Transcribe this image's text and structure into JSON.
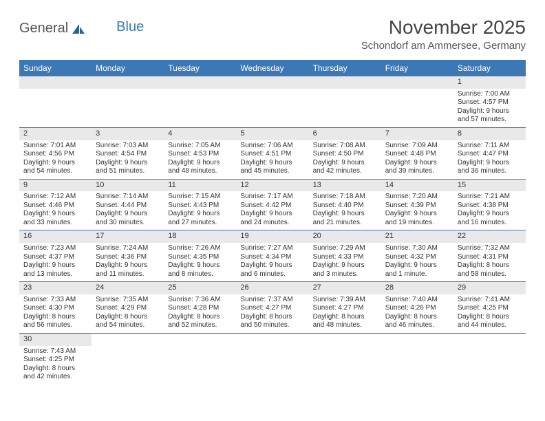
{
  "logo": {
    "text1": "General",
    "text2": "Blue"
  },
  "title": "November 2025",
  "location": "Schondorf am Ammersee, Germany",
  "colors": {
    "header_bg": "#3b78b5",
    "header_text": "#ffffff",
    "daynum_bg": "#e9e9e9",
    "row_border": "#3b78b5",
    "body_text": "#333333",
    "page_bg": "#ffffff"
  },
  "weekdays": [
    "Sunday",
    "Monday",
    "Tuesday",
    "Wednesday",
    "Thursday",
    "Friday",
    "Saturday"
  ],
  "weeks": [
    [
      {
        "blank": true
      },
      {
        "blank": true
      },
      {
        "blank": true
      },
      {
        "blank": true
      },
      {
        "blank": true
      },
      {
        "blank": true
      },
      {
        "day": "1",
        "sunrise": "Sunrise: 7:00 AM",
        "sunset": "Sunset: 4:57 PM",
        "daylight": "Daylight: 9 hours and 57 minutes."
      }
    ],
    [
      {
        "day": "2",
        "sunrise": "Sunrise: 7:01 AM",
        "sunset": "Sunset: 4:56 PM",
        "daylight": "Daylight: 9 hours and 54 minutes."
      },
      {
        "day": "3",
        "sunrise": "Sunrise: 7:03 AM",
        "sunset": "Sunset: 4:54 PM",
        "daylight": "Daylight: 9 hours and 51 minutes."
      },
      {
        "day": "4",
        "sunrise": "Sunrise: 7:05 AM",
        "sunset": "Sunset: 4:53 PM",
        "daylight": "Daylight: 9 hours and 48 minutes."
      },
      {
        "day": "5",
        "sunrise": "Sunrise: 7:06 AM",
        "sunset": "Sunset: 4:51 PM",
        "daylight": "Daylight: 9 hours and 45 minutes."
      },
      {
        "day": "6",
        "sunrise": "Sunrise: 7:08 AM",
        "sunset": "Sunset: 4:50 PM",
        "daylight": "Daylight: 9 hours and 42 minutes."
      },
      {
        "day": "7",
        "sunrise": "Sunrise: 7:09 AM",
        "sunset": "Sunset: 4:48 PM",
        "daylight": "Daylight: 9 hours and 39 minutes."
      },
      {
        "day": "8",
        "sunrise": "Sunrise: 7:11 AM",
        "sunset": "Sunset: 4:47 PM",
        "daylight": "Daylight: 9 hours and 36 minutes."
      }
    ],
    [
      {
        "day": "9",
        "sunrise": "Sunrise: 7:12 AM",
        "sunset": "Sunset: 4:46 PM",
        "daylight": "Daylight: 9 hours and 33 minutes."
      },
      {
        "day": "10",
        "sunrise": "Sunrise: 7:14 AM",
        "sunset": "Sunset: 4:44 PM",
        "daylight": "Daylight: 9 hours and 30 minutes."
      },
      {
        "day": "11",
        "sunrise": "Sunrise: 7:15 AM",
        "sunset": "Sunset: 4:43 PM",
        "daylight": "Daylight: 9 hours and 27 minutes."
      },
      {
        "day": "12",
        "sunrise": "Sunrise: 7:17 AM",
        "sunset": "Sunset: 4:42 PM",
        "daylight": "Daylight: 9 hours and 24 minutes."
      },
      {
        "day": "13",
        "sunrise": "Sunrise: 7:18 AM",
        "sunset": "Sunset: 4:40 PM",
        "daylight": "Daylight: 9 hours and 21 minutes."
      },
      {
        "day": "14",
        "sunrise": "Sunrise: 7:20 AM",
        "sunset": "Sunset: 4:39 PM",
        "daylight": "Daylight: 9 hours and 19 minutes."
      },
      {
        "day": "15",
        "sunrise": "Sunrise: 7:21 AM",
        "sunset": "Sunset: 4:38 PM",
        "daylight": "Daylight: 9 hours and 16 minutes."
      }
    ],
    [
      {
        "day": "16",
        "sunrise": "Sunrise: 7:23 AM",
        "sunset": "Sunset: 4:37 PM",
        "daylight": "Daylight: 9 hours and 13 minutes."
      },
      {
        "day": "17",
        "sunrise": "Sunrise: 7:24 AM",
        "sunset": "Sunset: 4:36 PM",
        "daylight": "Daylight: 9 hours and 11 minutes."
      },
      {
        "day": "18",
        "sunrise": "Sunrise: 7:26 AM",
        "sunset": "Sunset: 4:35 PM",
        "daylight": "Daylight: 9 hours and 8 minutes."
      },
      {
        "day": "19",
        "sunrise": "Sunrise: 7:27 AM",
        "sunset": "Sunset: 4:34 PM",
        "daylight": "Daylight: 9 hours and 6 minutes."
      },
      {
        "day": "20",
        "sunrise": "Sunrise: 7:29 AM",
        "sunset": "Sunset: 4:33 PM",
        "daylight": "Daylight: 9 hours and 3 minutes."
      },
      {
        "day": "21",
        "sunrise": "Sunrise: 7:30 AM",
        "sunset": "Sunset: 4:32 PM",
        "daylight": "Daylight: 9 hours and 1 minute."
      },
      {
        "day": "22",
        "sunrise": "Sunrise: 7:32 AM",
        "sunset": "Sunset: 4:31 PM",
        "daylight": "Daylight: 8 hours and 58 minutes."
      }
    ],
    [
      {
        "day": "23",
        "sunrise": "Sunrise: 7:33 AM",
        "sunset": "Sunset: 4:30 PM",
        "daylight": "Daylight: 8 hours and 56 minutes."
      },
      {
        "day": "24",
        "sunrise": "Sunrise: 7:35 AM",
        "sunset": "Sunset: 4:29 PM",
        "daylight": "Daylight: 8 hours and 54 minutes."
      },
      {
        "day": "25",
        "sunrise": "Sunrise: 7:36 AM",
        "sunset": "Sunset: 4:28 PM",
        "daylight": "Daylight: 8 hours and 52 minutes."
      },
      {
        "day": "26",
        "sunrise": "Sunrise: 7:37 AM",
        "sunset": "Sunset: 4:27 PM",
        "daylight": "Daylight: 8 hours and 50 minutes."
      },
      {
        "day": "27",
        "sunrise": "Sunrise: 7:39 AM",
        "sunset": "Sunset: 4:27 PM",
        "daylight": "Daylight: 8 hours and 48 minutes."
      },
      {
        "day": "28",
        "sunrise": "Sunrise: 7:40 AM",
        "sunset": "Sunset: 4:26 PM",
        "daylight": "Daylight: 8 hours and 46 minutes."
      },
      {
        "day": "29",
        "sunrise": "Sunrise: 7:41 AM",
        "sunset": "Sunset: 4:25 PM",
        "daylight": "Daylight: 8 hours and 44 minutes."
      }
    ],
    [
      {
        "day": "30",
        "sunrise": "Sunrise: 7:43 AM",
        "sunset": "Sunset: 4:25 PM",
        "daylight": "Daylight: 8 hours and 42 minutes."
      },
      {
        "blank": true,
        "noborder": true
      },
      {
        "blank": true,
        "noborder": true
      },
      {
        "blank": true,
        "noborder": true
      },
      {
        "blank": true,
        "noborder": true
      },
      {
        "blank": true,
        "noborder": true
      },
      {
        "blank": true,
        "noborder": true
      }
    ]
  ]
}
